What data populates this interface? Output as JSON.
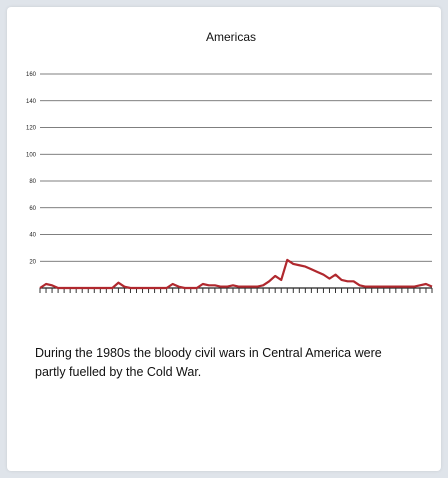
{
  "chart_data": {
    "type": "line",
    "title": "Americas",
    "xlabel": "",
    "ylabel": "",
    "ylim": [
      0,
      160
    ],
    "yticks": [
      20,
      40,
      60,
      80,
      100,
      120,
      140,
      160
    ],
    "grid": true,
    "series": [
      {
        "color": "#b0282e",
        "values": [
          0,
          3,
          2,
          0,
          0,
          0,
          0,
          0,
          0,
          0,
          0,
          0,
          0,
          4,
          1,
          0,
          0,
          0,
          0,
          0,
          0,
          0,
          3,
          1,
          0,
          0,
          0,
          3,
          2,
          2,
          1,
          1,
          2,
          1,
          1,
          1,
          1,
          2,
          5,
          9,
          6,
          21,
          18,
          17,
          16,
          14,
          12,
          10,
          7,
          10,
          6,
          5,
          5,
          2,
          1,
          1,
          1,
          1,
          1,
          1,
          1,
          1,
          1,
          2,
          3,
          1
        ]
      }
    ]
  },
  "caption": "During the 1980s the bloody civil wars in Central America were partly fuelled by the Cold War."
}
